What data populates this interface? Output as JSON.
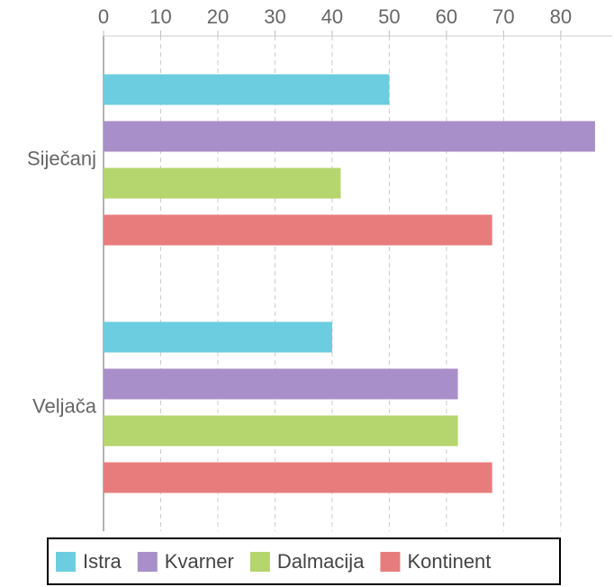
{
  "chart_data": {
    "type": "hbar",
    "categories": [
      "Siječanj",
      "Veljača"
    ],
    "series": [
      {
        "name": "Istra",
        "color": "#6ccde0",
        "values": [
          50,
          40
        ]
      },
      {
        "name": "Kvarner",
        "color": "#a98fc9",
        "values": [
          86,
          62
        ]
      },
      {
        "name": "Dalmacija",
        "color": "#b5d56f",
        "values": [
          41.5,
          62
        ]
      },
      {
        "name": "Kontinent",
        "color": "#e87c7c",
        "values": [
          68,
          68
        ]
      }
    ],
    "xlim": [
      0,
      89
    ],
    "xticks": [
      0,
      10,
      20,
      30,
      40,
      50,
      60,
      70,
      80
    ],
    "grid": true,
    "legend": "bottom"
  }
}
